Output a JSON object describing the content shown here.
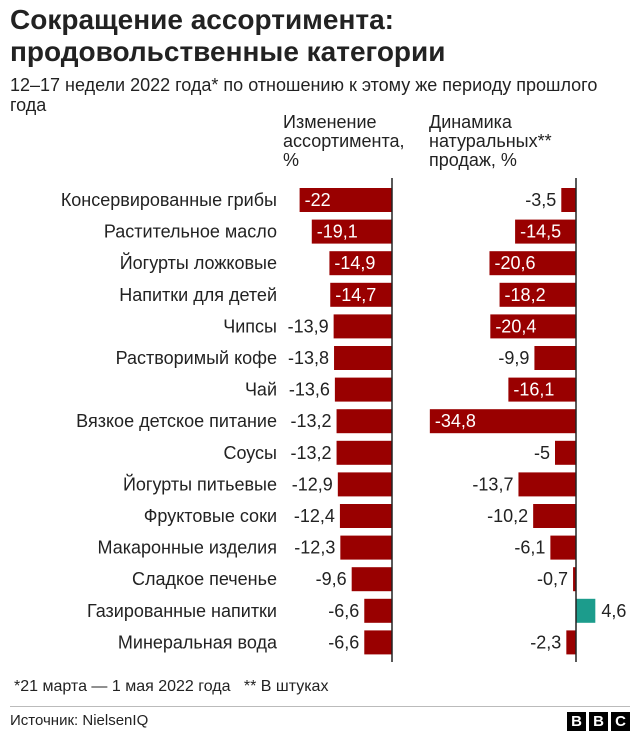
{
  "title": "Сокращение ассортимента: продовольственные категории",
  "subtitle": "12–17 недели 2022 года* по отношению к этому же периоду прошлого года",
  "footnote": "*21 марта — 1 мая 2022 года   ** В штуках",
  "source": "Источник:  NielsenIQ",
  "logo": {
    "letters": [
      "B",
      "B",
      "C"
    ]
  },
  "colors": {
    "negative": "#990000",
    "positive": "#1c9c8c",
    "axis": "#222222"
  },
  "chart_data": {
    "type": "bar",
    "orientation": "horizontal",
    "categories": [
      "Консервированные грибы",
      "Растительное масло",
      "Йогурты ложковые",
      "Напитки для детей",
      "Чипсы",
      "Растворимый кофе",
      "Чай",
      "Вязкое детское питание",
      "Соусы",
      "Йогурты питьевые",
      "Фруктовые соки",
      "Макаронные изделия",
      "Сладкое печенье",
      "Газированные напитки",
      "Минеральная вода"
    ],
    "series": [
      {
        "name": "Изменение ассортимента, %",
        "values": [
          -22,
          -19.1,
          -14.9,
          -14.7,
          -13.9,
          -13.8,
          -13.6,
          -13.2,
          -13.2,
          -12.9,
          -12.4,
          -12.3,
          -9.6,
          -6.6,
          -6.6
        ],
        "labels": [
          "-22",
          "-19,1",
          "-14,9",
          "-14,7",
          "-13,9",
          "-13,8",
          "-13,6",
          "-13,2",
          "-13,2",
          "-12,9",
          "-12,4",
          "-12,3",
          "-9,6",
          "-6,6",
          "-6,6"
        ]
      },
      {
        "name": "Динамика натуральных** продаж, %",
        "values": [
          -3.5,
          -14.5,
          -20.6,
          -18.2,
          -20.4,
          -9.9,
          -16.1,
          -34.8,
          -5,
          -13.7,
          -10.2,
          -6.1,
          -0.7,
          4.6,
          -2.3
        ],
        "labels": [
          "-3,5",
          "-14,5",
          "-20,6",
          "-18,2",
          "-20,4",
          "-9,9",
          "-16,1",
          "-34,8",
          "-5",
          "-13,7",
          "-10,2",
          "-6,1",
          "-0,7",
          "4,6",
          "-2,3"
        ]
      }
    ]
  }
}
